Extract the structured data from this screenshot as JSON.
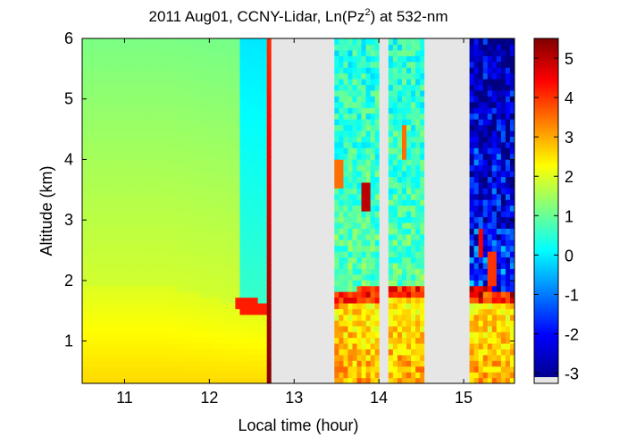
{
  "chart_data": {
    "type": "heatmap",
    "title_prefix": "2011 Aug01, CCNY-Lidar, Ln(Pz",
    "title_sup": "2",
    "title_suffix": ") at 532-nm",
    "xlabel": "Local time (hour)",
    "ylabel": "Altitude (km)",
    "xlim": [
      10.5,
      15.6
    ],
    "ylim": [
      0.3,
      6.0
    ],
    "x_ticks": [
      "11",
      "12",
      "13",
      "14",
      "15"
    ],
    "y_ticks": [
      "1",
      "2",
      "3",
      "4",
      "5",
      "6"
    ],
    "colorbar": {
      "clim": [
        -3.1,
        5.5
      ],
      "ticks": [
        "-3",
        "-2",
        "-1",
        "0",
        "1",
        "2",
        "3",
        "4",
        "5"
      ],
      "colormap": "jet"
    },
    "no_data_intervals": [
      [
        12.75,
        13.5
      ],
      [
        14.0,
        14.1
      ],
      [
        14.55,
        15.05
      ]
    ],
    "no_data_color": "#e6e6e6",
    "layers": {
      "boundary_layer_top_km": [
        {
          "t": 10.5,
          "h": 1.9
        },
        {
          "t": 11.5,
          "h": 1.9
        },
        {
          "t": 12.4,
          "h": 1.6
        },
        {
          "t": 12.75,
          "h": 1.5
        },
        {
          "t": 13.5,
          "h": 1.7
        },
        {
          "t": 14.0,
          "h": 1.8
        },
        {
          "t": 14.55,
          "h": 1.8
        },
        {
          "t": 15.05,
          "h": 1.8
        },
        {
          "t": 15.6,
          "h": 1.7
        }
      ],
      "cloud_patches": [
        {
          "t": 13.85,
          "h": 3.4,
          "v": 5.0
        },
        {
          "t": 14.3,
          "h": 4.3,
          "v": 3.5
        },
        {
          "t": 13.55,
          "h": 3.8,
          "v": 3.5
        },
        {
          "t": 15.2,
          "h": 2.6,
          "v": 4.5
        },
        {
          "t": 15.35,
          "h": 2.2,
          "v": 4.0
        }
      ]
    }
  }
}
